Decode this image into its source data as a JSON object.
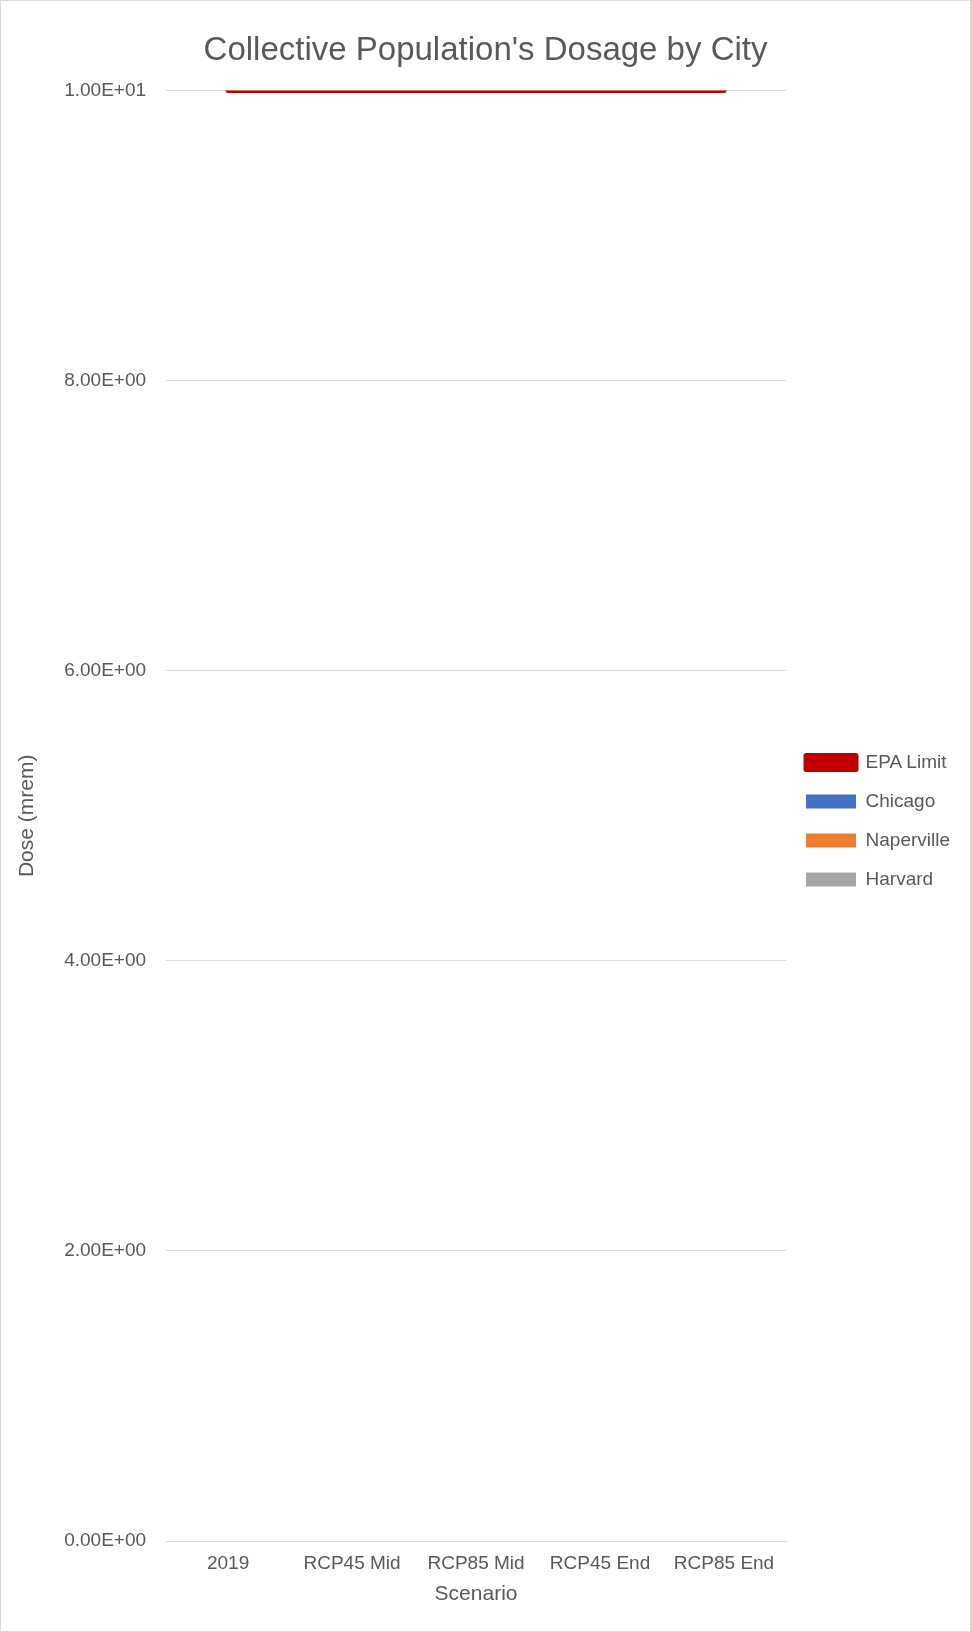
{
  "chart_data": {
    "type": "bar",
    "title": "Collective Population's Dosage by City",
    "xlabel": "Scenario",
    "ylabel": "Dose (mrem)",
    "categories": [
      "2019",
      "RCP45 Mid",
      "RCP85 Mid",
      "RCP45 End",
      "RCP85 End"
    ],
    "series": [
      {
        "name": "Chicago",
        "color": "#4472c4",
        "values": [
          0,
          0,
          0,
          0,
          0
        ]
      },
      {
        "name": "Naperville",
        "color": "#ed7d31",
        "values": [
          0,
          0,
          0,
          0,
          0
        ]
      },
      {
        "name": "Harvard",
        "color": "#a5a5a5",
        "values": [
          0,
          0,
          0,
          0,
          0
        ]
      },
      {
        "name": "EPA Limit",
        "type": "line",
        "color": "#c00000",
        "values": [
          10,
          10,
          10,
          10,
          10
        ],
        "marker": "none"
      }
    ],
    "ylim": [
      0,
      10
    ],
    "yticks": [
      {
        "value": 0,
        "label": "0.00E+00"
      },
      {
        "value": 2,
        "label": "2.00E+00"
      },
      {
        "value": 4,
        "label": "4.00E+00"
      },
      {
        "value": 6,
        "label": "6.00E+00"
      },
      {
        "value": 8,
        "label": "8.00E+00"
      },
      {
        "value": 10,
        "label": "1.00E+01"
      }
    ],
    "grid": "y",
    "legend": "right"
  }
}
